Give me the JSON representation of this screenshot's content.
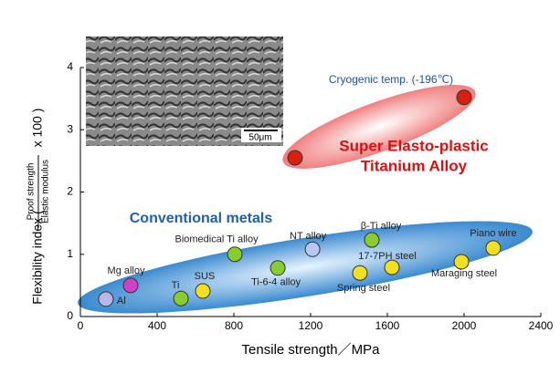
{
  "chart_data": {
    "type": "scatter",
    "x_label": "Tensile strength／MPa",
    "y_label_prefix": "Flexibility index (",
    "y_label_numerator": "Proof strength",
    "y_label_denominator": "Elastic modulus",
    "y_label_suffix": "x 100 )",
    "xlim": [
      0,
      2400
    ],
    "xticks": [
      0,
      400,
      800,
      1200,
      1600,
      2000,
      2400
    ],
    "ylim": [
      0,
      4
    ],
    "yticks": [
      0,
      1,
      2,
      3,
      4
    ],
    "x": [
      133,
      262,
      524,
      638,
      805,
      1029,
      1210,
      1457,
      1519,
      1624,
      1986,
      2152,
      1119,
      2000
    ],
    "y": [
      0.28,
      0.5,
      0.29,
      0.41,
      1.0,
      0.78,
      1.08,
      0.7,
      1.23,
      0.79,
      0.88,
      1.1,
      2.55,
      3.52
    ],
    "point_labels": [
      "Al",
      "Mg alloy",
      "Ti",
      "SUS",
      "Biomedical Ti alloy",
      "Ti-6-4 alloy",
      "NT alloy",
      "Spring steel",
      "β-Ti alloy",
      "17-7PH steel",
      "Maraging steel",
      "Piano wire",
      null,
      "Cryogenic temp. (-196℃)"
    ],
    "colors": [
      "#b8b8e8",
      "#d040c8",
      "#88cc30",
      "#f0e020",
      "#88cc30",
      "#88cc30",
      "#b8c8f0",
      "#f0e020",
      "#88cc30",
      "#f0e020",
      "#f0e020",
      "#f0e020",
      "#d82010",
      "#d82010"
    ],
    "annotations": {
      "conventional": "Conventional metals",
      "super_line1": "Super Elasto-plastic",
      "super_line2": "Titanium Alloy",
      "scale_bar": "50μm"
    }
  }
}
